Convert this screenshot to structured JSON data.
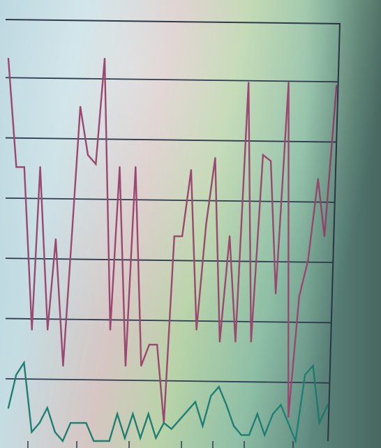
{
  "chart_data": {
    "type": "line",
    "title": "",
    "xlabel": "",
    "ylabel": "",
    "grid": true,
    "legend": "none",
    "ylim": [
      0,
      7
    ],
    "grid_lines": [
      1,
      2,
      3,
      4,
      5,
      6
    ],
    "x": [
      0,
      1,
      2,
      3,
      4,
      5,
      6,
      7,
      8,
      9,
      10,
      11,
      12,
      13,
      14,
      15,
      16,
      17,
      18,
      19,
      20,
      21,
      22,
      23,
      24,
      25,
      26,
      27,
      28,
      29,
      30,
      31,
      32,
      33,
      34,
      35,
      36,
      37,
      38,
      39,
      40,
      41,
      42,
      43,
      44,
      45,
      46
    ],
    "series": [
      {
        "color": "#9a4870",
        "values": [
          6.35,
          4.55,
          4.55,
          1.85,
          4.55,
          1.85,
          3.35,
          1.25,
          3.35,
          5.55,
          4.75,
          4.6,
          6.35,
          1.85,
          4.55,
          1.25,
          4.55,
          1.25,
          1.6,
          1.6,
          0.3,
          3.4,
          3.4,
          4.5,
          1.85,
          3.6,
          4.7,
          1.65,
          3.4,
          1.65,
          5.95,
          1.65,
          4.75,
          4.65,
          2.45,
          5.95,
          0.4,
          2.4,
          3.0,
          4.35,
          3.4,
          5.9
        ],
        "x": [
          0,
          1,
          2,
          3,
          4,
          5,
          6,
          7,
          8,
          9,
          10,
          11,
          12,
          13,
          14,
          15,
          16,
          17,
          18,
          19,
          20,
          21,
          22,
          23,
          24,
          25,
          26,
          27,
          28,
          29,
          30,
          31,
          32,
          33,
          34,
          35,
          36,
          37,
          38,
          39,
          40,
          41
        ]
      },
      {
        "color": "#1f7f72",
        "values": [
          0.55,
          1.1,
          1.3,
          0.15,
          0.3,
          0.55,
          0.15,
          0.0,
          0.3,
          0.3,
          0.3,
          0.0,
          0.0,
          0.0,
          0.45,
          0.05,
          0.45,
          0.05,
          0.45,
          0.05,
          0.3,
          0.2,
          0.35,
          0.5,
          0.65,
          0.25,
          0.75,
          0.9,
          0.6,
          0.25,
          0.1,
          0.1,
          0.45,
          0.1,
          0.45,
          0.6,
          0.3,
          0.0,
          1.1,
          1.25,
          0.3,
          0.6
        ],
        "x": [
          0,
          1,
          2,
          3,
          4,
          5,
          6,
          7,
          8,
          9,
          10,
          11,
          12,
          13,
          14,
          15,
          16,
          17,
          18,
          19,
          20,
          21,
          22,
          23,
          24,
          25,
          26,
          27,
          28,
          29,
          30,
          31,
          32,
          33,
          34,
          35,
          36,
          37,
          38,
          39,
          40,
          41
        ]
      }
    ]
  }
}
